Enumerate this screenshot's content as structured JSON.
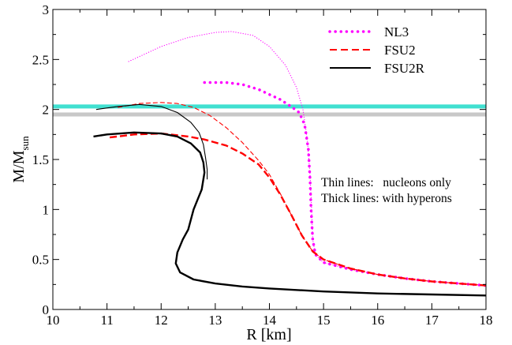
{
  "chart_data": {
    "type": "line",
    "xlabel": "R [km]",
    "ylabel_main": "M/M",
    "ylabel_sub": "sun",
    "xlim": [
      10,
      18
    ],
    "ylim": [
      0,
      3
    ],
    "xticks": [
      10,
      11,
      12,
      13,
      14,
      15,
      16,
      17,
      18
    ],
    "yticks": [
      0,
      0.5,
      1,
      1.5,
      2,
      2.5,
      3
    ],
    "xtick_labels": [
      "10",
      "11",
      "12",
      "13",
      "14",
      "15",
      "16",
      "17",
      "18"
    ],
    "ytick_labels": [
      "0",
      "0.5",
      "1",
      "1.5",
      "2",
      "2.5",
      "3"
    ],
    "grid": false,
    "legend_position": "top-right",
    "legend": [
      {
        "name": "NL3",
        "color": "#ff00ff",
        "style": "dotted"
      },
      {
        "name": "FSU2",
        "color": "#ff0000",
        "style": "dashed"
      },
      {
        "name": "FSU2R",
        "color": "#000000",
        "style": "solid"
      }
    ],
    "bands": [
      {
        "y": [
          2.01,
          2.05
        ],
        "color": "#40e0d0"
      },
      {
        "y": [
          1.93,
          1.97
        ],
        "color": "#c8c8c8"
      }
    ],
    "annotations": [
      "Thin lines:   nucleons only",
      "Thick lines: with hyperons"
    ],
    "series": [
      {
        "color": "#ff00ff",
        "style": "dotted",
        "weight": "thin",
        "x": [
          11.4,
          12.0,
          12.5,
          13.0,
          13.3,
          13.7,
          14.0,
          14.3,
          14.5,
          14.62,
          14.7,
          14.75,
          14.78,
          14.8,
          14.85,
          15.0,
          15.5,
          16.0,
          16.5,
          17.0,
          17.5,
          18.0
        ],
        "y": [
          2.48,
          2.63,
          2.72,
          2.77,
          2.78,
          2.74,
          2.63,
          2.44,
          2.22,
          2.0,
          1.7,
          1.35,
          1.0,
          0.7,
          0.55,
          0.47,
          0.4,
          0.35,
          0.31,
          0.28,
          0.26,
          0.24
        ]
      },
      {
        "color": "#ff00ff",
        "style": "dotted",
        "weight": "thick",
        "x": [
          12.8,
          13.2,
          13.5,
          13.8,
          14.0,
          14.2,
          14.4,
          14.55,
          14.65,
          14.72,
          14.75,
          14.77,
          14.8,
          14.85,
          15.0,
          15.5,
          16.0,
          16.5,
          17.0,
          17.5,
          18.0
        ],
        "y": [
          2.27,
          2.27,
          2.25,
          2.2,
          2.15,
          2.1,
          2.03,
          1.97,
          1.85,
          1.6,
          1.3,
          1.0,
          0.7,
          0.55,
          0.47,
          0.4,
          0.35,
          0.31,
          0.28,
          0.26,
          0.24
        ]
      },
      {
        "color": "#ff0000",
        "style": "dashed",
        "weight": "thin",
        "x": [
          11.2,
          11.6,
          12.0,
          12.3,
          12.6,
          12.9,
          13.2,
          13.5,
          13.8,
          14.0,
          14.2,
          14.4,
          14.6,
          14.8,
          15.0,
          15.5,
          16.0,
          16.5,
          17.0,
          17.5,
          18.0
        ],
        "y": [
          2.02,
          2.06,
          2.07,
          2.06,
          2.02,
          1.94,
          1.82,
          1.67,
          1.49,
          1.35,
          1.16,
          0.95,
          0.74,
          0.58,
          0.5,
          0.41,
          0.35,
          0.31,
          0.28,
          0.26,
          0.24
        ]
      },
      {
        "color": "#ff0000",
        "style": "dashed",
        "weight": "thick",
        "x": [
          11.05,
          11.5,
          12.0,
          12.5,
          12.8,
          13.2,
          13.5,
          13.8,
          14.0,
          14.2,
          14.4,
          14.6,
          14.8,
          15.0,
          15.5,
          16.0,
          16.5,
          17.0,
          17.5,
          18.0
        ],
        "y": [
          1.72,
          1.75,
          1.76,
          1.73,
          1.7,
          1.64,
          1.56,
          1.45,
          1.32,
          1.15,
          0.95,
          0.74,
          0.58,
          0.5,
          0.41,
          0.35,
          0.31,
          0.28,
          0.26,
          0.24
        ]
      },
      {
        "color": "#000000",
        "style": "solid",
        "weight": "thin",
        "x": [
          10.8,
          11.2,
          11.6,
          12.0,
          12.3,
          12.55,
          12.7,
          12.78,
          12.82,
          12.85,
          12.85
        ],
        "y": [
          2.0,
          2.03,
          2.05,
          2.03,
          1.97,
          1.87,
          1.77,
          1.65,
          1.52,
          1.4,
          1.3
        ]
      },
      {
        "color": "#000000",
        "style": "solid",
        "weight": "thick",
        "x": [
          10.75,
          11.0,
          11.5,
          12.0,
          12.3,
          12.55,
          12.72,
          12.78,
          12.8,
          12.75,
          12.6,
          12.5,
          12.4,
          12.3,
          12.27,
          12.35,
          12.6,
          13.0,
          13.5,
          14.0,
          15.0,
          16.0,
          17.0,
          18.0
        ],
        "y": [
          1.73,
          1.75,
          1.77,
          1.76,
          1.73,
          1.66,
          1.57,
          1.47,
          1.37,
          1.2,
          1.0,
          0.8,
          0.7,
          0.57,
          0.46,
          0.37,
          0.3,
          0.26,
          0.23,
          0.21,
          0.18,
          0.16,
          0.15,
          0.14
        ]
      }
    ]
  }
}
